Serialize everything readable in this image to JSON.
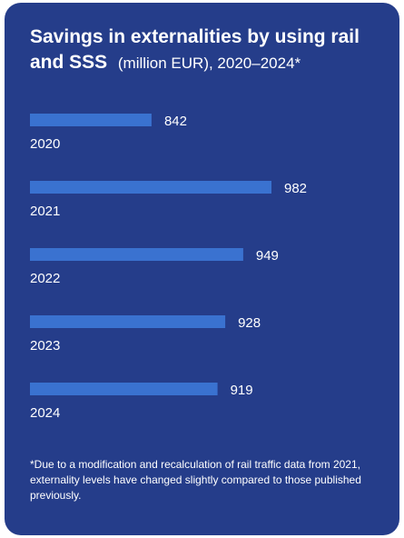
{
  "header": {
    "title_bold": "Savings in externalities by using rail and SSS",
    "title_rest": "(million EUR), 2020–2024*"
  },
  "footnote": "*Due to a modification and recalculation of rail traffic data from 2021, externality levels have changed slightly compared to those published previously.",
  "colors": {
    "background": "#253d8a",
    "bar": "#3a72d0",
    "text": "#ffffff"
  },
  "chart_data": {
    "type": "bar",
    "orientation": "horizontal",
    "categories": [
      "2020",
      "2021",
      "2022",
      "2023",
      "2024"
    ],
    "values": [
      842,
      982,
      949,
      928,
      919
    ],
    "title": "Savings in externalities by using rail and SSS (million EUR), 2020–2024*",
    "xlabel": "",
    "ylabel": "",
    "grid": false,
    "legend": "none"
  }
}
